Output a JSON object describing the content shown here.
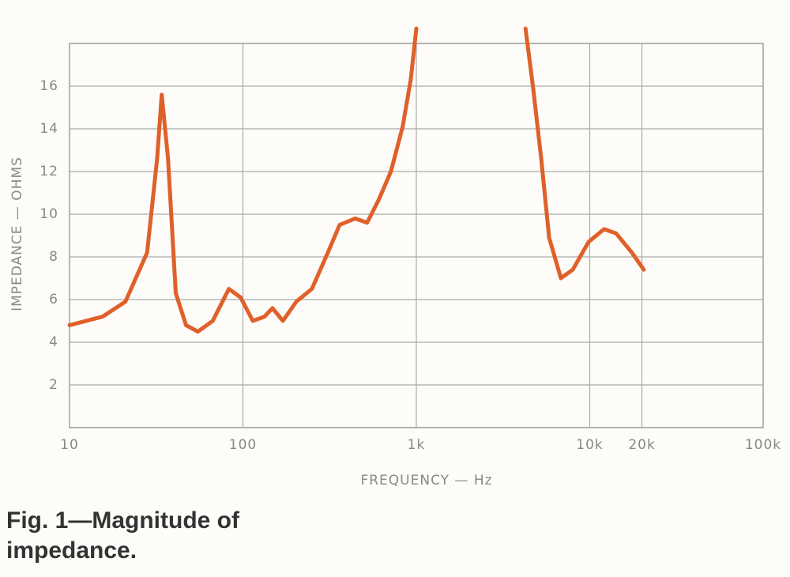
{
  "chart_data": {
    "type": "line",
    "ylabel": "IMPEDANCE — OHMS",
    "xlabel": "FREQUENCY — Hz",
    "caption": "Fig. 1—Magnitude of impedance.",
    "log_x": true,
    "grid": true,
    "xlim": [
      10,
      100000
    ],
    "ylim": [
      0,
      18
    ],
    "xticks": [
      10,
      100,
      {
        "value": 1000,
        "label": "1k"
      },
      {
        "value": 10000,
        "label": "10k"
      },
      {
        "value": 20000,
        "label": "20k"
      },
      {
        "value": 100000,
        "label": "100k"
      }
    ],
    "yticks": [
      2,
      4,
      6,
      8,
      10,
      12,
      14,
      16
    ],
    "x": [
      10,
      15.5,
      21,
      28,
      32,
      34,
      37,
      41,
      47,
      55,
      67,
      83,
      97,
      114,
      133,
      148,
      170,
      203,
      250,
      309,
      361,
      444,
      520,
      609,
      713,
      834,
      928,
      1000,
      null,
      4260,
      4720,
      5250,
      5830,
      6820,
      7980,
      9840,
      12100,
      14200,
      17500,
      20500
    ],
    "series": [
      {
        "name": "impedance",
        "color": "#e0602a",
        "values": [
          4.8,
          5.2,
          5.9,
          8.2,
          12.6,
          15.6,
          12.6,
          6.3,
          4.8,
          4.5,
          5.0,
          6.5,
          6.1,
          5.0,
          5.2,
          5.6,
          5.0,
          5.9,
          6.5,
          8.2,
          9.5,
          9.8,
          9.6,
          10.7,
          12.0,
          14.1,
          16.3,
          18.7,
          null,
          18.7,
          15.9,
          12.6,
          8.9,
          7.0,
          7.4,
          8.7,
          9.3,
          9.1,
          8.2,
          7.4
        ]
      }
    ]
  }
}
